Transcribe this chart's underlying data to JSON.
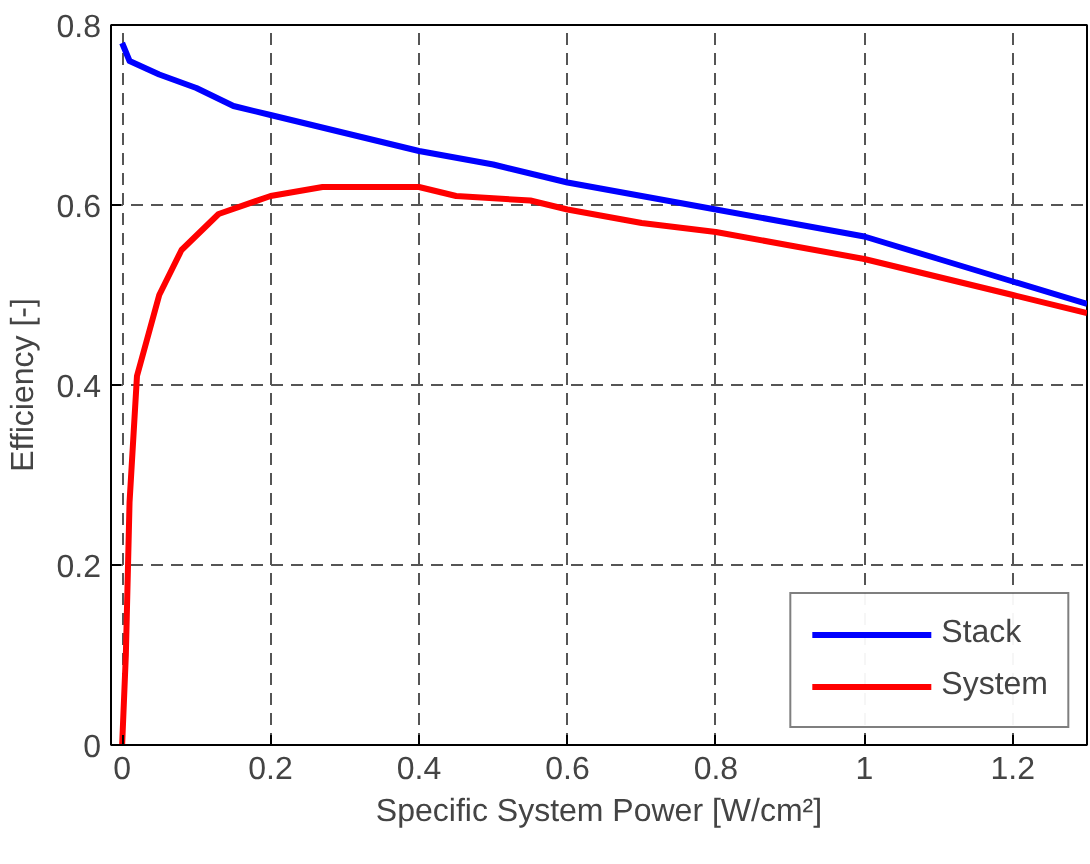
{
  "chart_data": {
    "type": "line",
    "xlabel": "Specific System Power [W/cm²]",
    "ylabel": "Efficiency [-]",
    "xlim": [
      -0.015,
      1.3
    ],
    "ylim": [
      0,
      0.8
    ],
    "xticks": [
      0,
      0.2,
      0.4,
      0.6,
      0.8,
      1,
      1.2
    ],
    "yticks": [
      0,
      0.2,
      0.4,
      0.6,
      0.8
    ],
    "grid": true,
    "legend": "bottom right",
    "line_style": "solid",
    "series": [
      {
        "name": "Stack",
        "color": "#0000ff",
        "x": [
          0,
          0.01,
          0.05,
          0.1,
          0.15,
          0.2,
          0.3,
          0.4,
          0.5,
          0.6,
          0.7,
          0.8,
          0.9,
          1.0,
          1.1,
          1.2,
          1.3
        ],
        "values": [
          0.78,
          0.76,
          0.745,
          0.73,
          0.71,
          0.7,
          0.68,
          0.66,
          0.645,
          0.625,
          0.61,
          0.595,
          0.58,
          0.565,
          0.54,
          0.515,
          0.49
        ]
      },
      {
        "name": "System",
        "color": "#ff0000",
        "x": [
          0,
          0.005,
          0.01,
          0.02,
          0.05,
          0.08,
          0.13,
          0.2,
          0.27,
          0.4,
          0.45,
          0.55,
          0.6,
          0.7,
          0.8,
          0.9,
          1.0,
          1.1,
          1.2,
          1.3
        ],
        "values": [
          0,
          0.1,
          0.27,
          0.41,
          0.5,
          0.55,
          0.59,
          0.61,
          0.62,
          0.62,
          0.61,
          0.605,
          0.595,
          0.58,
          0.57,
          0.555,
          0.54,
          0.52,
          0.5,
          0.48
        ]
      }
    ]
  }
}
